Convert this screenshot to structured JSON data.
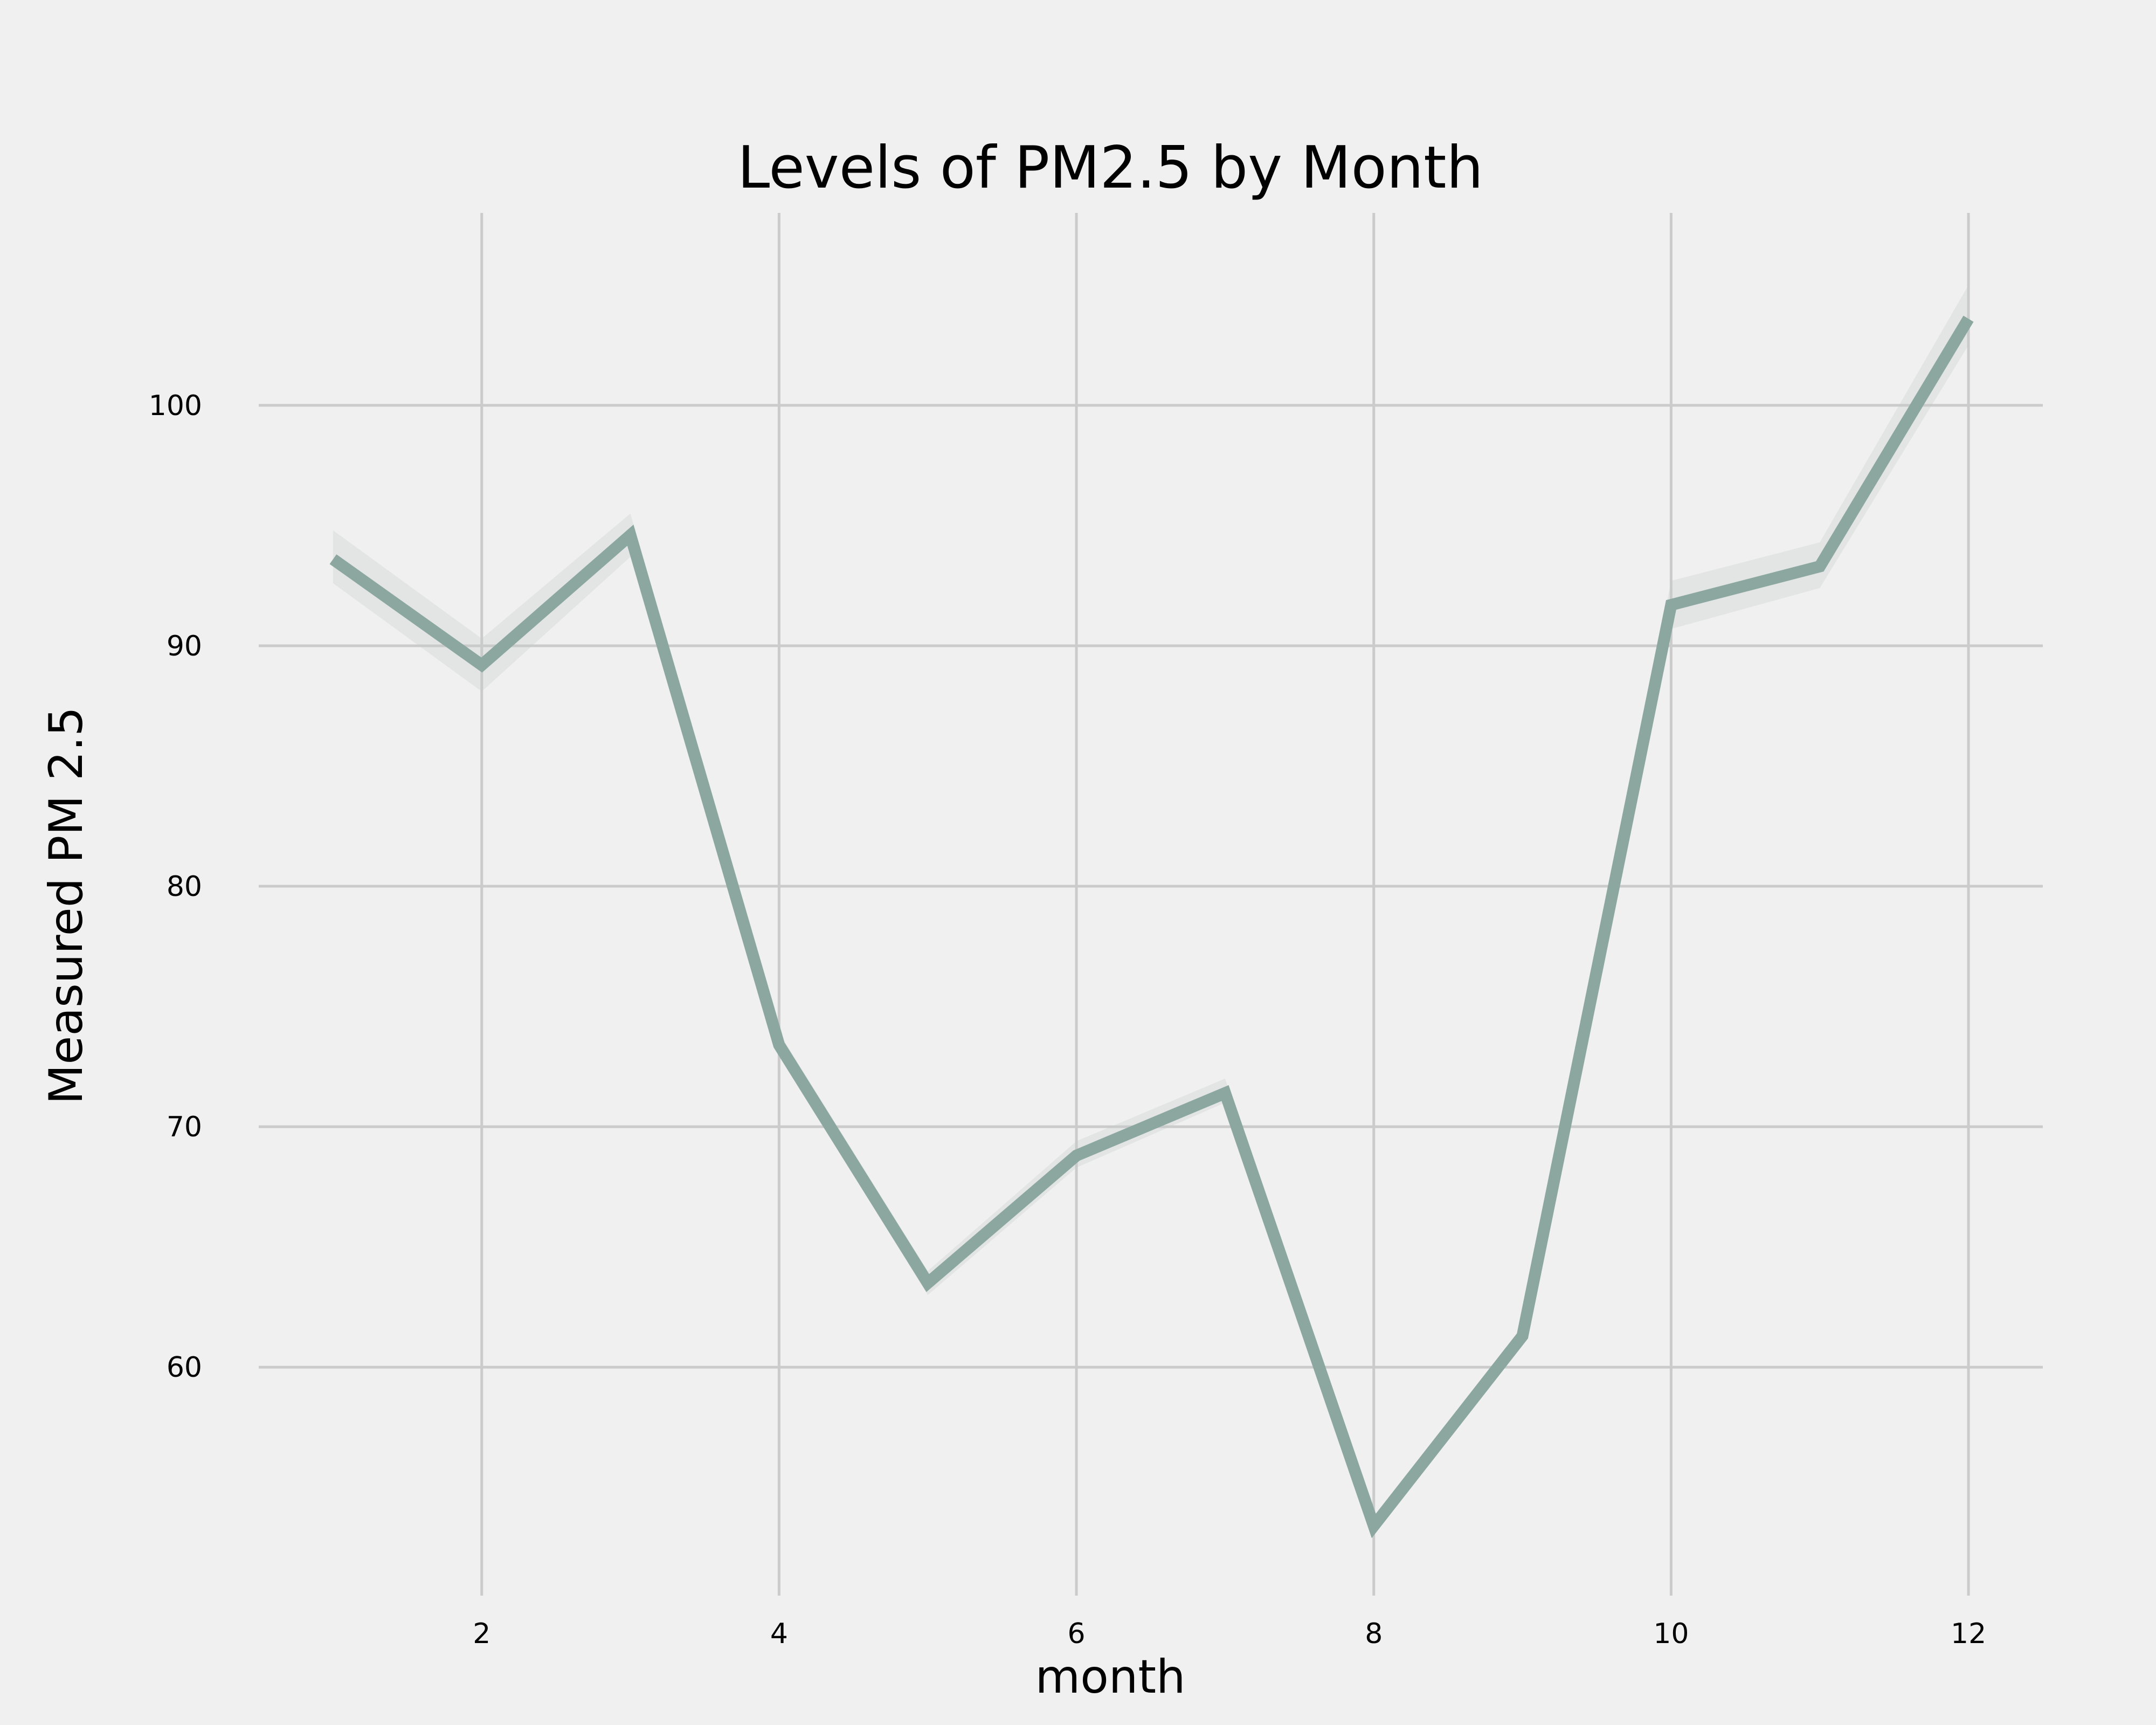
{
  "chart_data": {
    "type": "line",
    "title": "Levels of PM2.5 by Month",
    "xlabel": "month",
    "ylabel": "Measured PM 2.5",
    "xlim": [
      0.5,
      12.5
    ],
    "ylim": [
      50.5,
      108
    ],
    "x_ticks": [
      2,
      4,
      6,
      8,
      10,
      12
    ],
    "y_ticks": [
      60,
      70,
      80,
      90,
      100
    ],
    "grid": true,
    "x": [
      1,
      2,
      3,
      4,
      5,
      6,
      7,
      8,
      9,
      10,
      11,
      12
    ],
    "series": [
      {
        "values": [
          93.6,
          89.2,
          94.6,
          73.4,
          63.5,
          68.8,
          71.4,
          53.4,
          61.3,
          91.7,
          93.3,
          103.6
        ],
        "ci_low": [
          92.6,
          88.1,
          93.7,
          73.0,
          63.0,
          68.3,
          71.0,
          53.2,
          61.0,
          90.7,
          92.4,
          102.5
        ],
        "ci_high": [
          94.8,
          90.3,
          95.5,
          73.9,
          64.0,
          69.4,
          72.0,
          53.7,
          61.6,
          92.7,
          94.3,
          105.0
        ],
        "color": "#8ba7a0",
        "band_color": "#c5cdca"
      }
    ]
  }
}
